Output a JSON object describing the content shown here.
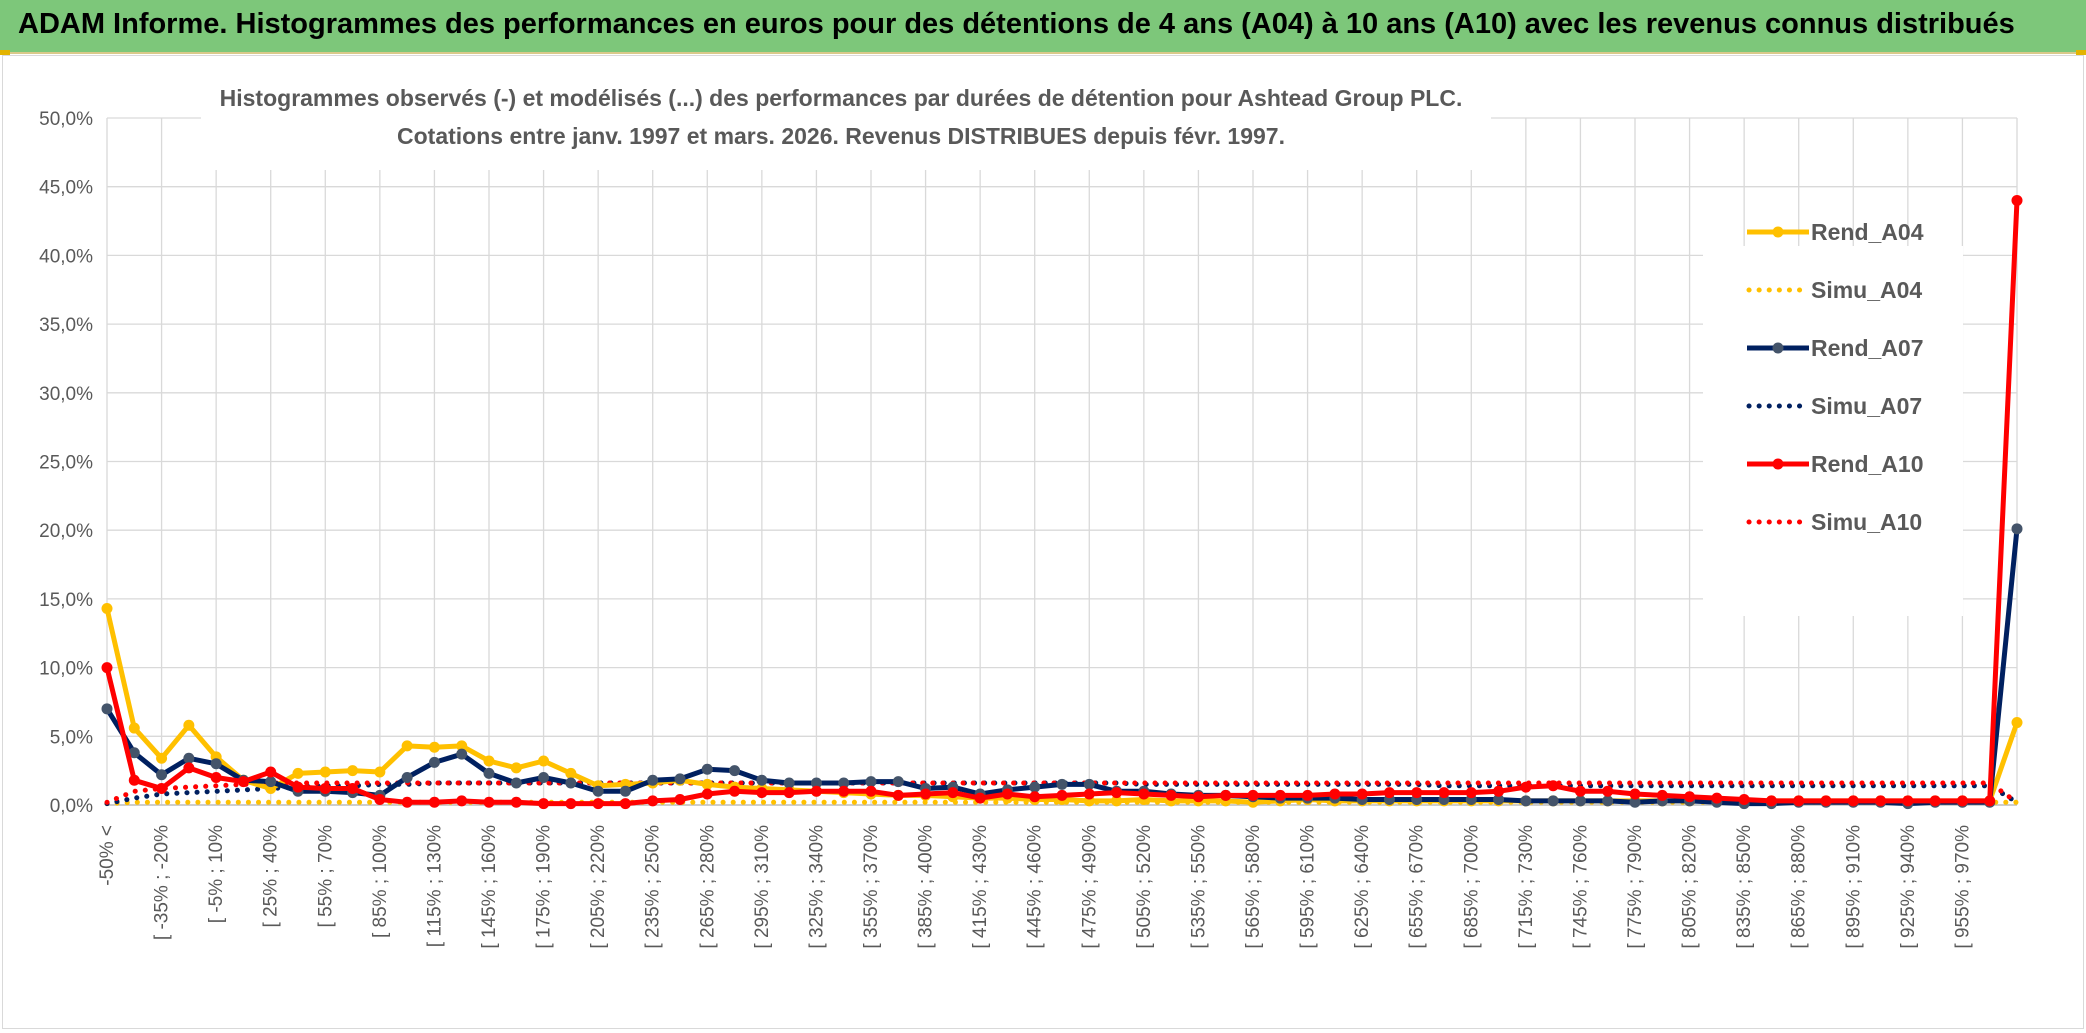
{
  "header": {
    "title": "ADAM Informe. Histogrammes des performances en euros pour des détentions de 4 ans (A04) à 10 ans (A10) avec les revenus connus distribués"
  },
  "colors": {
    "banner": "#7dc77a",
    "a04": "#ffc000",
    "a07": "#002060",
    "a10": "#ff0000",
    "grid": "#d9d9d9"
  },
  "chart_data": {
    "type": "line",
    "title": "Histogrammes observés (-) et modélisés (...) des performances par durées de détention pour Ashtead Group PLC.",
    "subtitle": "Cotations entre janv. 1997 et mars. 2026. Revenus DISTRIBUES depuis févr. 1997.",
    "ylim": [
      0,
      50
    ],
    "yticks": [
      "0,0%",
      "5,0%",
      "10,0%",
      "15,0%",
      "20,0%",
      "25,0%",
      "30,0%",
      "35,0%",
      "40,0%",
      "45,0%",
      "50,0%"
    ],
    "x_tick_labels": [
      "-50% <",
      "[ -35% ; -20%",
      "[ -5% ; 10%",
      "[ 25% ; 40%",
      "[ 55% ; 70%",
      "[ 85% ; 100%",
      "[ 115% ; 130%",
      "[ 145% ; 160%",
      "[ 175% ; 190%",
      "[ 205% ; 220%",
      "[ 235% ; 250%",
      "[ 265% ; 280%",
      "[ 295% ; 310%",
      "[ 325% ; 340%",
      "[ 355% ; 370%",
      "[ 385% ; 400%",
      "[ 415% ; 430%",
      "[ 445% ; 460%",
      "[ 475% ; 490%",
      "[ 505% ; 520%",
      "[ 535% ; 550%",
      "[ 565% ; 580%",
      "[ 595% ; 610%",
      "[ 625% ; 640%",
      "[ 655% ; 670%",
      "[ 685% ; 700%",
      "[ 715% ; 730%",
      "[ 745% ; 760%",
      "[ 775% ; 790%",
      "[ 805% ; 820%",
      "[ 835% ; 850%",
      "[ 865% ; 880%",
      "[ 895% ; 910%",
      "[ 925% ; 940%",
      "[ 955% ; 970%"
    ],
    "n_points": 71,
    "legend_position": "right",
    "series": [
      {
        "name": "Rend_A04",
        "style": "solid",
        "color": "#ffc000",
        "values": [
          14.3,
          5.6,
          3.4,
          5.8,
          3.5,
          1.8,
          1.2,
          2.3,
          2.4,
          2.5,
          2.4,
          4.3,
          4.2,
          4.3,
          3.2,
          2.7,
          3.2,
          2.3,
          1.4,
          1.5,
          1.6,
          1.8,
          1.5,
          1.3,
          1.2,
          1.1,
          1.0,
          0.9,
          0.8,
          0.7,
          0.7,
          0.6,
          0.5,
          0.5,
          0.4,
          0.4,
          0.3,
          0.3,
          0.4,
          0.3,
          0.3,
          0.3,
          0.2,
          0.3,
          0.4,
          0.3,
          0.3,
          0.3,
          0.3,
          0.3,
          0.3,
          0.3,
          0.3,
          0.3,
          0.3,
          0.3,
          0.3,
          0.3,
          0.3,
          0.3,
          0.3,
          0.3,
          0.3,
          0.3,
          0.3,
          0.3,
          0.3,
          0.3,
          0.3,
          0.3,
          6.0
        ]
      },
      {
        "name": "Simu_A04",
        "style": "dotted",
        "color": "#ffc000",
        "values": [
          0.1,
          0.2,
          0.2,
          0.2,
          0.2,
          0.2,
          0.2,
          0.2,
          0.2,
          0.2,
          0.2,
          0.2,
          0.2,
          0.2,
          0.2,
          0.2,
          0.2,
          0.2,
          0.2,
          0.2,
          0.2,
          0.2,
          0.2,
          0.2,
          0.2,
          0.2,
          0.2,
          0.2,
          0.2,
          0.2,
          0.2,
          0.2,
          0.2,
          0.2,
          0.2,
          0.2,
          0.2,
          0.2,
          0.2,
          0.2,
          0.2,
          0.2,
          0.2,
          0.2,
          0.2,
          0.2,
          0.2,
          0.2,
          0.2,
          0.2,
          0.2,
          0.2,
          0.2,
          0.2,
          0.2,
          0.2,
          0.2,
          0.2,
          0.2,
          0.2,
          0.2,
          0.2,
          0.2,
          0.2,
          0.2,
          0.2,
          0.2,
          0.2,
          0.2,
          0.2,
          0.2
        ]
      },
      {
        "name": "Rend_A07",
        "style": "solid",
        "color": "#002060",
        "values": [
          7.0,
          3.8,
          2.2,
          3.4,
          3.0,
          1.8,
          1.7,
          1.0,
          1.0,
          0.9,
          0.7,
          2.0,
          3.1,
          3.7,
          2.3,
          1.6,
          2.0,
          1.6,
          1.0,
          1.0,
          1.8,
          1.9,
          2.6,
          2.5,
          1.8,
          1.6,
          1.6,
          1.6,
          1.7,
          1.7,
          1.2,
          1.3,
          0.8,
          1.1,
          1.3,
          1.5,
          1.5,
          1.0,
          1.0,
          0.8,
          0.7,
          0.7,
          0.6,
          0.5,
          0.5,
          0.5,
          0.4,
          0.4,
          0.4,
          0.4,
          0.4,
          0.4,
          0.3,
          0.3,
          0.3,
          0.3,
          0.2,
          0.3,
          0.3,
          0.2,
          0.1,
          0.1,
          0.2,
          0.2,
          0.2,
          0.2,
          0.1,
          0.2,
          0.2,
          0.2,
          20.1
        ]
      },
      {
        "name": "Simu_A07",
        "style": "dotted",
        "color": "#002060",
        "values": [
          0.1,
          0.5,
          0.8,
          0.9,
          1.0,
          1.1,
          1.2,
          1.3,
          1.4,
          1.4,
          1.5,
          1.5,
          1.6,
          1.6,
          1.6,
          1.6,
          1.6,
          1.6,
          1.6,
          1.6,
          1.6,
          1.6,
          1.6,
          1.6,
          1.6,
          1.6,
          1.6,
          1.6,
          1.6,
          1.6,
          1.6,
          1.6,
          1.6,
          1.6,
          1.6,
          1.6,
          1.6,
          1.6,
          1.5,
          1.5,
          1.5,
          1.5,
          1.5,
          1.5,
          1.5,
          1.5,
          1.5,
          1.5,
          1.5,
          1.4,
          1.4,
          1.4,
          1.4,
          1.4,
          1.4,
          1.4,
          1.4,
          1.4,
          1.4,
          1.4,
          1.4,
          1.4,
          1.4,
          1.4,
          1.4,
          1.4,
          1.4,
          1.4,
          1.4,
          1.4,
          0.2
        ]
      },
      {
        "name": "Rend_A10",
        "style": "solid",
        "color": "#ff0000",
        "values": [
          10.0,
          1.8,
          1.2,
          2.7,
          2.0,
          1.7,
          2.4,
          1.3,
          1.2,
          1.2,
          0.4,
          0.2,
          0.2,
          0.3,
          0.2,
          0.2,
          0.1,
          0.1,
          0.1,
          0.1,
          0.3,
          0.4,
          0.8,
          1.0,
          0.9,
          0.9,
          1.0,
          1.0,
          1.0,
          0.7,
          0.8,
          0.9,
          0.5,
          0.8,
          0.6,
          0.7,
          0.8,
          0.9,
          0.8,
          0.7,
          0.6,
          0.7,
          0.7,
          0.7,
          0.7,
          0.8,
          0.8,
          0.9,
          0.9,
          0.9,
          0.9,
          1.0,
          1.3,
          1.4,
          1.0,
          1.0,
          0.8,
          0.7,
          0.6,
          0.5,
          0.4,
          0.3,
          0.3,
          0.3,
          0.3,
          0.3,
          0.3,
          0.3,
          0.3,
          0.3,
          44.0
        ]
      },
      {
        "name": "Simu_A10",
        "style": "dotted",
        "color": "#ff0000",
        "values": [
          0.2,
          1.0,
          1.2,
          1.3,
          1.4,
          1.5,
          1.6,
          1.6,
          1.6,
          1.6,
          1.6,
          1.6,
          1.6,
          1.6,
          1.6,
          1.6,
          1.6,
          1.6,
          1.6,
          1.6,
          1.6,
          1.6,
          1.6,
          1.6,
          1.6,
          1.6,
          1.6,
          1.6,
          1.6,
          1.6,
          1.6,
          1.6,
          1.6,
          1.6,
          1.6,
          1.6,
          1.6,
          1.6,
          1.6,
          1.6,
          1.6,
          1.6,
          1.6,
          1.6,
          1.6,
          1.6,
          1.6,
          1.6,
          1.6,
          1.6,
          1.6,
          1.6,
          1.6,
          1.6,
          1.6,
          1.6,
          1.6,
          1.6,
          1.6,
          1.6,
          1.6,
          1.6,
          1.6,
          1.6,
          1.6,
          1.6,
          1.6,
          1.6,
          1.6,
          1.6,
          0.2
        ]
      }
    ]
  }
}
